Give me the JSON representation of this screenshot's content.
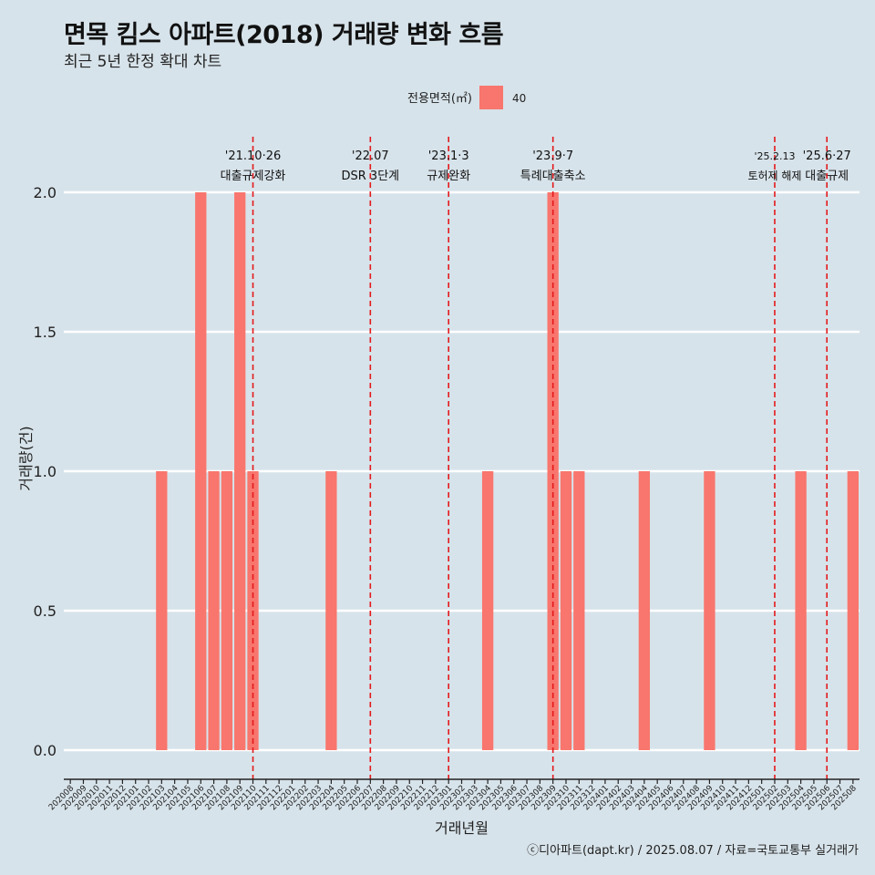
{
  "header": {
    "title": "면목 킴스 아파트(2018) 거래량 변화 흐름",
    "subtitle": "최근 5년 한정 확대 차트"
  },
  "caption": "ⓒ디아파트(dapt.kr) / 2025.08.07 / 자료=국토교통부 실거래가",
  "colors": {
    "background": "#d7e3ea",
    "bar": "#f8766d",
    "event_line": "#e41a1c",
    "grid": "#ffffff"
  },
  "chart_data": {
    "type": "bar",
    "xlabel": "거래년월",
    "ylabel": "거래량(건)",
    "ylim": [
      -0.1,
      2.2
    ],
    "yticks": [
      "0.0",
      "0.5",
      "1.0",
      "1.5",
      "2.0"
    ],
    "legend": {
      "title": "전용면적(㎡)",
      "position": "top",
      "entries": [
        "40"
      ]
    },
    "grid": "horizontal",
    "categories": [
      "202008",
      "202009",
      "202010",
      "202011",
      "202012",
      "202101",
      "202102",
      "202103",
      "202104",
      "202105",
      "202106",
      "202107",
      "202108",
      "202109",
      "202110",
      "202111",
      "202112",
      "202201",
      "202202",
      "202203",
      "202204",
      "202205",
      "202206",
      "202207",
      "202208",
      "202209",
      "202210",
      "202211",
      "202212",
      "202301",
      "202302",
      "202303",
      "202304",
      "202305",
      "202306",
      "202307",
      "202308",
      "202309",
      "202310",
      "202311",
      "202312",
      "202401",
      "202402",
      "202403",
      "202404",
      "202405",
      "202406",
      "202407",
      "202408",
      "202409",
      "202410",
      "202411",
      "202412",
      "202501",
      "202502",
      "202503",
      "202504",
      "202505",
      "202506",
      "202507",
      "202508"
    ],
    "series": [
      {
        "name": "40",
        "values": [
          0,
          0,
          0,
          0,
          0,
          0,
          0,
          1,
          0,
          0,
          2,
          1,
          1,
          2,
          1,
          0,
          0,
          0,
          0,
          0,
          1,
          0,
          0,
          0,
          0,
          0,
          0,
          0,
          0,
          0,
          0,
          0,
          1,
          0,
          0,
          0,
          0,
          2,
          1,
          1,
          0,
          0,
          0,
          0,
          1,
          0,
          0,
          0,
          0,
          1,
          0,
          0,
          0,
          0,
          0,
          0,
          1,
          0,
          0,
          0,
          1
        ]
      }
    ],
    "annotations": [
      {
        "x": "202110",
        "date": "'21.10·26",
        "label": "대출규제강화"
      },
      {
        "x": "202207",
        "date": "'22.07",
        "label": "DSR 3단계"
      },
      {
        "x": "202301",
        "date": "'23.1·3",
        "label": "규제완화"
      },
      {
        "x": "202309",
        "date": "'23.9·7",
        "label": "특례대출축소"
      },
      {
        "x": "202502",
        "date": "'25.2.13",
        "label": "토허제 해제"
      },
      {
        "x": "202506",
        "date": "'25.6·27",
        "label": "대출규제"
      }
    ]
  }
}
